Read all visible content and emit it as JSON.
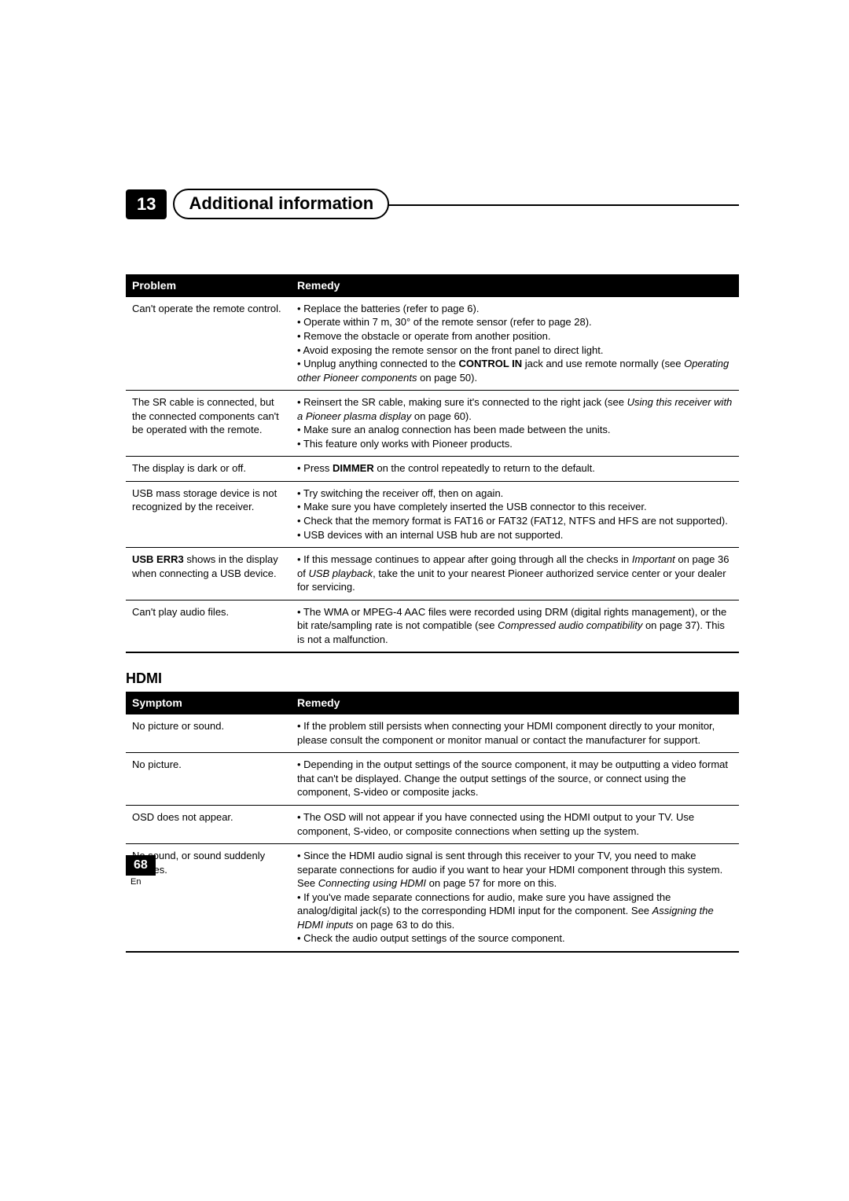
{
  "chapter": {
    "number": "13",
    "title": "Additional information"
  },
  "table1": {
    "header_problem": "Problem",
    "header_remedy": "Remedy",
    "rows": [
      {
        "problem": "Can't operate the remote control.",
        "remedy": "• Replace the batteries (refer to page 6).\n• Operate within 7 m, 30° of the remote sensor (refer to page 28).\n• Remove the obstacle or operate from another position.\n• Avoid exposing the remote sensor on the front panel to direct light.\n• Unplug anything connected to the <b>CONTROL IN</b> jack and use remote normally (see <i>Operating other Pioneer components</i> on page 50)."
      },
      {
        "problem": "The SR cable is connected, but the connected components can't be operated with the remote.",
        "remedy": "• Reinsert the SR cable, making sure it's connected to the right jack (see <i>Using this receiver with a Pioneer plasma display</i> on page 60).\n• Make sure an analog connection has been made between the units.\n• This feature only works with Pioneer products."
      },
      {
        "problem": "The display is dark or off.",
        "remedy": "• Press <b>DIMMER</b> on the control repeatedly to return to the default."
      },
      {
        "problem": "USB mass storage device is not recognized by the receiver.",
        "remedy": "• Try switching the receiver off, then on again.\n• Make sure you have completely inserted the USB connector to this receiver.\n• Check that the memory format is FAT16 or FAT32 (FAT12, NTFS and HFS are not supported).\n• USB devices with an internal USB hub are not supported."
      },
      {
        "problem": "<b>USB ERR3</b> shows in the display when connecting a USB device.",
        "remedy": "• If this message continues to appear after going through all the checks in <i>Important</i> on page 36 of <i>USB playback</i>, take the unit to your nearest Pioneer authorized service center or your dealer for servicing."
      },
      {
        "problem": "Can't play audio files.",
        "remedy": "• The WMA or MPEG-4 AAC files were recorded using DRM (digital rights management), or the bit rate/sampling rate is not compatible (see <i>Compressed audio compatibility</i> on page 37). This is not a malfunction."
      }
    ]
  },
  "section2_title": "HDMI",
  "table2": {
    "header_symptom": "Symptom",
    "header_remedy": "Remedy",
    "rows": [
      {
        "symptom": "No picture or sound.",
        "remedy": "• If the problem still persists when connecting your HDMI component directly to your monitor, please consult the component or monitor manual or contact the manufacturer for support."
      },
      {
        "symptom": "No picture.",
        "remedy": "• Depending in the output settings of the source component, it may be outputting a video format that can't be displayed. Change the output settings of the source, or connect using the component, S-video or composite jacks."
      },
      {
        "symptom": "OSD does not appear.",
        "remedy": "• The OSD will not appear if you have connected using the HDMI output to your TV. Use component, S-video, or composite connections when setting up the system."
      },
      {
        "symptom": "No sound, or sound suddenly ceases.",
        "remedy": "• Since the HDMI audio signal is sent through this receiver to your TV, you need to make separate connections for audio if you want to hear your HDMI component through this system. See <i>Connecting using HDMI</i> on page 57 for more on this.\n• If you've made separate connections for audio, make sure you have assigned the analog/digital jack(s) to the corresponding HDMI input for the component. See <i>Assigning the HDMI inputs</i> on page 63 to do this.\n• Check the audio output settings of the source component."
      }
    ]
  },
  "footer": {
    "page_number": "68",
    "language": "En"
  },
  "colors": {
    "black": "#000000",
    "white": "#ffffff"
  }
}
